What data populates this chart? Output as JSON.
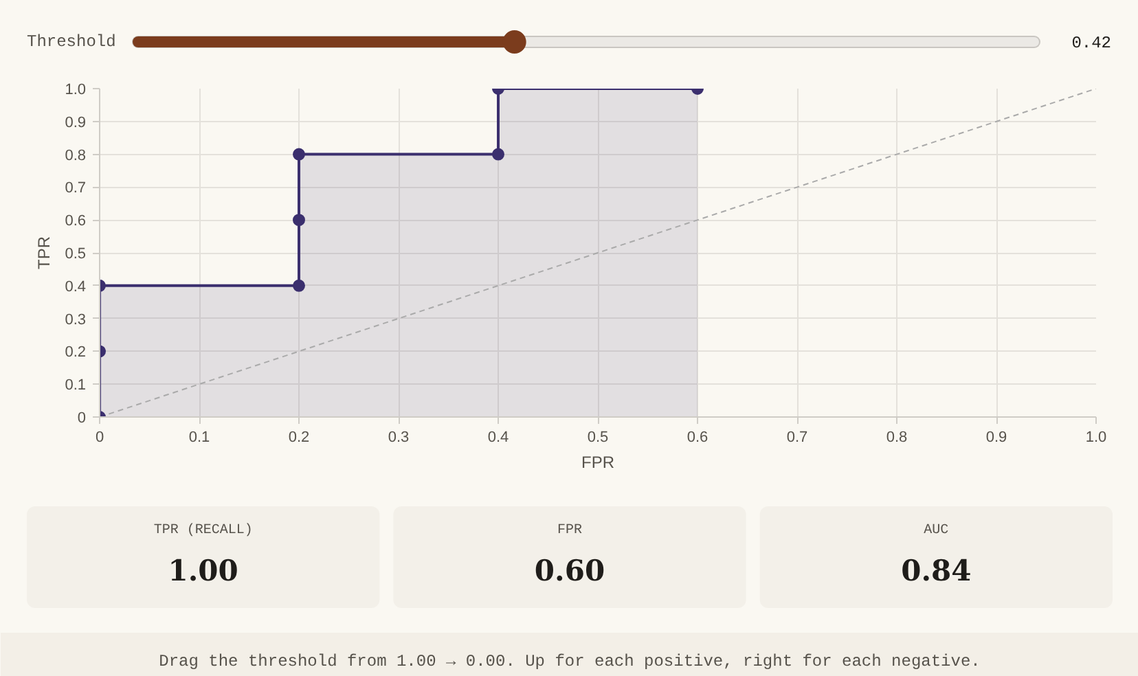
{
  "chart_data": [
    {
      "type": "other",
      "title": "Threshold",
      "values": [
        0.42
      ],
      "data_labels": true,
      "color": "#7b3c1d"
    },
    {
      "type": "area",
      "xlabel": "FPR",
      "ylabel": "TPR",
      "xlim": [
        0,
        1
      ],
      "ylim": [
        0,
        1
      ],
      "xticks": [
        0,
        0.1,
        0.2,
        0.3,
        0.4,
        0.5,
        0.6,
        0.7,
        0.8,
        0.9,
        {
          "value": 1,
          "label": "1.0"
        }
      ],
      "yticks": [
        0,
        0.1,
        0.2,
        0.3,
        0.4,
        0.5,
        0.6,
        0.7,
        0.8,
        0.9,
        {
          "value": 1,
          "label": "1.0"
        }
      ],
      "grid": true,
      "series": [
        {
          "type": "area",
          "color": "#3b2f6e",
          "marker": "circle",
          "line_style": "solid",
          "x": [
            0,
            0,
            0,
            0.2,
            0.2,
            0.2,
            0.4,
            0.4,
            0.6
          ],
          "values": [
            0,
            0.2,
            0.4,
            0.4,
            0.6,
            0.8,
            0.8,
            1,
            1
          ]
        },
        {
          "type": "line",
          "color": "#aaaaaa",
          "marker": "none",
          "line_style": "dashed",
          "x": [
            0,
            1
          ],
          "values": [
            0,
            1
          ]
        }
      ],
      "annotations": [
        "Drag the threshold from 1.00 → 0.00. Up for each positive, right for each negative."
      ]
    },
    {
      "type": "other",
      "categories": [
        "TPR (RECALL)",
        "FPR",
        "AUC"
      ],
      "values": [
        1.0,
        0.6,
        0.84
      ],
      "value_labels": [
        "1.00",
        "0.60",
        "0.84"
      ]
    }
  ]
}
